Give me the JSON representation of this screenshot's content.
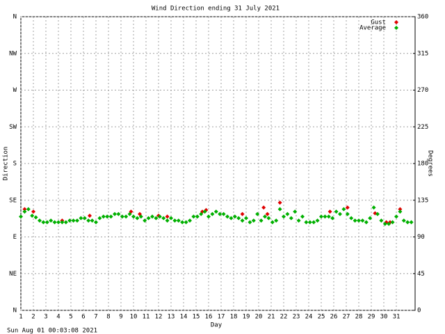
{
  "chart_data": {
    "type": "scatter",
    "title": "Wind Direction ending 31 July 2021",
    "xlabel": "Day",
    "ylabel": "Direction",
    "y2label": "Degrees",
    "footer": "Sun Aug 01 00:03:08 2021",
    "xlim": [
      1,
      32.5
    ],
    "xticks": [
      1,
      2,
      3,
      4,
      5,
      6,
      7,
      8,
      9,
      10,
      11,
      12,
      13,
      14,
      15,
      16,
      17,
      18,
      19,
      20,
      21,
      22,
      23,
      24,
      25,
      26,
      27,
      28,
      29,
      30,
      31
    ],
    "ylim": [
      0,
      360
    ],
    "yticks": [
      {
        "value": 0,
        "label": "N"
      },
      {
        "value": 45,
        "label": "NE"
      },
      {
        "value": 90,
        "label": "E"
      },
      {
        "value": 135,
        "label": "SE"
      },
      {
        "value": 180,
        "label": "S"
      },
      {
        "value": 225,
        "label": "SW"
      },
      {
        "value": 270,
        "label": "W"
      },
      {
        "value": 315,
        "label": "NW"
      },
      {
        "value": 360,
        "label": "N"
      }
    ],
    "y2lim": [
      0,
      360
    ],
    "y2ticks": [
      0,
      45,
      90,
      135,
      180,
      225,
      270,
      315,
      360
    ],
    "grid": true,
    "legend": "upper right",
    "series": [
      {
        "name": "Gust",
        "color": "#e00000",
        "x": [
          1.3,
          2.0,
          4.3,
          6.5,
          9.8,
          10.5,
          12.0,
          12.7,
          15.5,
          15.8,
          18.7,
          20.4,
          20.7,
          21.7,
          25.7,
          27.1,
          29.3,
          30.2,
          30.5,
          31.3
        ],
        "values": [
          124,
          121,
          110,
          116,
          121,
          118,
          116,
          115,
          121,
          123,
          118,
          126,
          118,
          132,
          121,
          126,
          119,
          108,
          108,
          124
        ]
      },
      {
        "name": "Average",
        "color": "#00b000",
        "x": [
          1.0,
          1.3,
          1.6,
          1.9,
          2.2,
          2.5,
          2.8,
          3.1,
          3.4,
          3.7,
          4.0,
          4.3,
          4.6,
          4.9,
          5.2,
          5.5,
          5.8,
          6.1,
          6.4,
          6.7,
          7.0,
          7.3,
          7.6,
          7.9,
          8.2,
          8.5,
          8.8,
          9.1,
          9.4,
          9.7,
          10.0,
          10.3,
          10.6,
          10.9,
          11.2,
          11.5,
          11.8,
          12.1,
          12.4,
          12.7,
          13.0,
          13.3,
          13.6,
          13.9,
          14.2,
          14.5,
          14.8,
          15.1,
          15.4,
          15.7,
          16.0,
          16.3,
          16.6,
          16.9,
          17.2,
          17.5,
          17.8,
          18.1,
          18.4,
          18.7,
          19.0,
          19.3,
          19.6,
          19.9,
          20.2,
          20.5,
          20.8,
          21.1,
          21.4,
          21.7,
          22.0,
          22.3,
          22.6,
          22.9,
          23.2,
          23.5,
          23.8,
          24.1,
          24.4,
          24.7,
          25.0,
          25.3,
          25.6,
          25.9,
          26.2,
          26.5,
          26.8,
          27.1,
          27.4,
          27.7,
          28.0,
          28.3,
          28.6,
          28.9,
          29.2,
          29.5,
          29.8,
          30.1,
          30.4,
          30.7,
          31.0,
          31.3,
          31.6,
          31.9,
          32.2
        ],
        "values": [
          115,
          121,
          124,
          116,
          114,
          110,
          108,
          108,
          110,
          108,
          108,
          108,
          108,
          110,
          110,
          110,
          113,
          113,
          110,
          110,
          108,
          113,
          115,
          115,
          115,
          118,
          118,
          115,
          115,
          118,
          115,
          113,
          115,
          110,
          113,
          115,
          113,
          115,
          113,
          110,
          113,
          110,
          110,
          108,
          108,
          110,
          115,
          115,
          118,
          121,
          115,
          118,
          121,
          118,
          118,
          115,
          113,
          115,
          113,
          110,
          113,
          108,
          110,
          118,
          110,
          115,
          113,
          108,
          110,
          124,
          115,
          118,
          113,
          121,
          110,
          115,
          108,
          108,
          108,
          110,
          115,
          115,
          115,
          113,
          121,
          118,
          124,
          118,
          113,
          110,
          110,
          110,
          108,
          113,
          126,
          118,
          110,
          106,
          106,
          108,
          115,
          121,
          110,
          108,
          108
        ]
      }
    ]
  }
}
